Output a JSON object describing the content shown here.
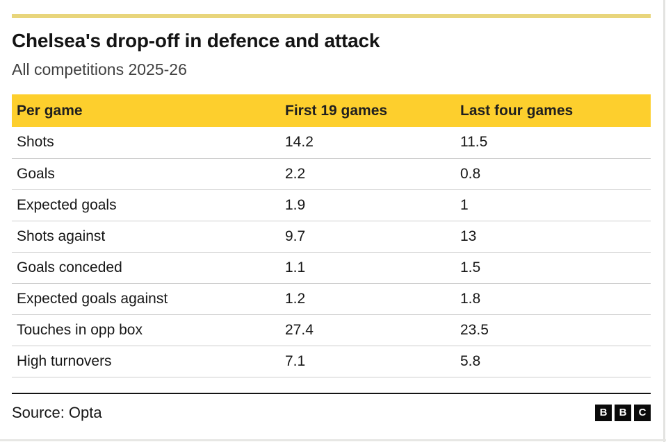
{
  "colors": {
    "accent-yellow": "#fdcf2d",
    "top-rule-yellow": "#e8d57b",
    "text-dark": "#141414",
    "subtitle-gray": "#404040",
    "divider-gray": "#cccccc",
    "logo-black": "#0a0a0a"
  },
  "header": {
    "title": "Chelsea's drop-off in defence and attack",
    "subtitle": "All competitions 2025-26"
  },
  "table": {
    "columns": [
      "Per game",
      "First 19 games",
      "Last four games"
    ],
    "rows": [
      {
        "metric": "Shots",
        "first19": "14.2",
        "last4": "11.5"
      },
      {
        "metric": "Goals",
        "first19": "2.2",
        "last4": "0.8"
      },
      {
        "metric": "Expected goals",
        "first19": "1.9",
        "last4": "1"
      },
      {
        "metric": "Shots against",
        "first19": "9.7",
        "last4": "13"
      },
      {
        "metric": "Goals conceded",
        "first19": "1.1",
        "last4": "1.5"
      },
      {
        "metric": "Expected goals against",
        "first19": "1.2",
        "last4": "1.8"
      },
      {
        "metric": "Touches in opp box",
        "first19": "27.4",
        "last4": "23.5"
      },
      {
        "metric": "High turnovers",
        "first19": "7.1",
        "last4": "5.8"
      }
    ]
  },
  "footer": {
    "source": "Source: Opta",
    "logo_letters": [
      "B",
      "B",
      "C"
    ]
  },
  "chart_data": {
    "type": "table",
    "title": "Chelsea's drop-off in defence and attack",
    "subtitle": "All competitions 2025-26",
    "row_header": "Per game",
    "categories": [
      "Shots",
      "Goals",
      "Expected goals",
      "Shots against",
      "Goals conceded",
      "Expected goals against",
      "Touches in opp box",
      "High turnovers"
    ],
    "series": [
      {
        "name": "First 19 games",
        "values": [
          14.2,
          2.2,
          1.9,
          9.7,
          1.1,
          1.2,
          27.4,
          7.1
        ]
      },
      {
        "name": "Last four games",
        "values": [
          11.5,
          0.8,
          1,
          13,
          1.5,
          1.8,
          23.5,
          5.8
        ]
      }
    ],
    "source": "Opta"
  }
}
